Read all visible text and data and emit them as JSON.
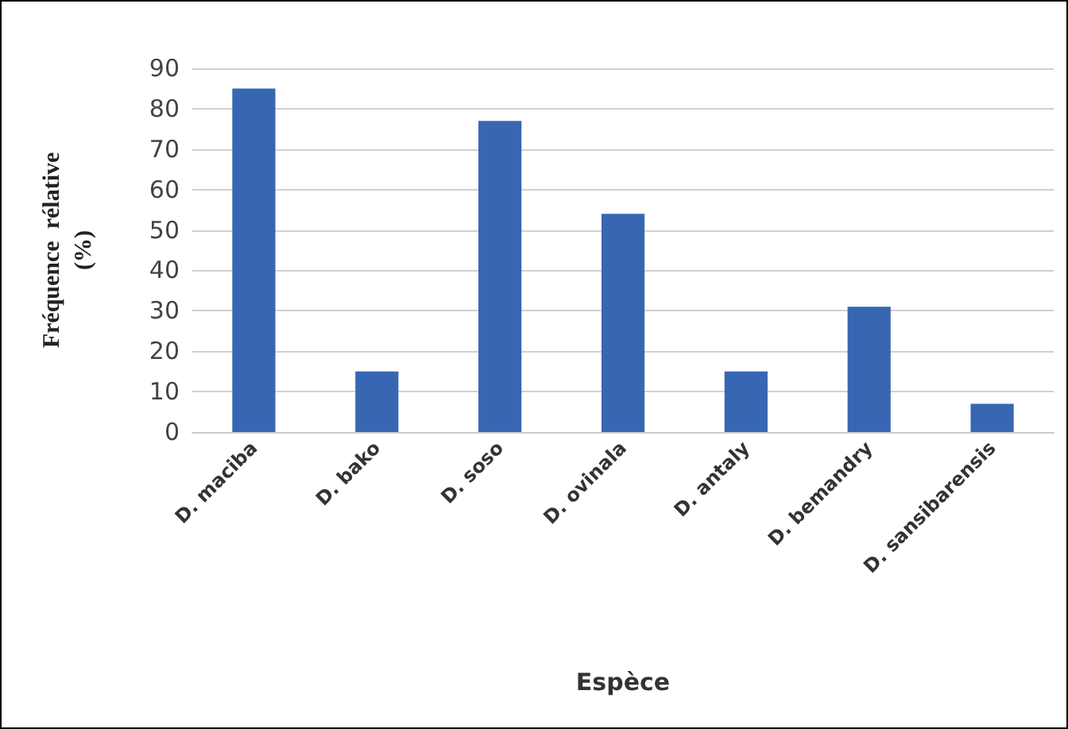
{
  "chart_data": {
    "type": "bar",
    "xlabel": "Espèce",
    "ylabel": "Fréquence  rélative\n(%)",
    "categories": [
      "D. maciba",
      "D. bako",
      "D. soso",
      "D. ovinala",
      "D. antaly",
      "D. bemandry",
      "D. sansibarensis"
    ],
    "values": [
      85,
      15,
      77,
      54,
      15,
      31,
      7
    ],
    "color": "#3767b3",
    "ylim": [
      0,
      90
    ],
    "yticks": [
      0,
      10,
      20,
      30,
      40,
      50,
      60,
      70,
      80,
      90
    ],
    "grid": "y"
  }
}
